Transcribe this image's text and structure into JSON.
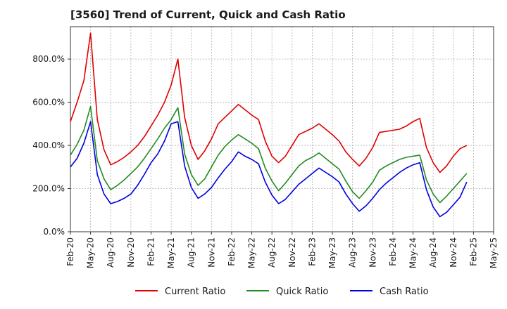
{
  "chart_data": {
    "type": "line",
    "title": "[3560]  Trend of Current, Quick and Cash Ratio",
    "xlabel": "",
    "ylabel": "",
    "ylim": [
      0,
      950
    ],
    "y_ticks": [
      0,
      200,
      400,
      600,
      800
    ],
    "y_tick_labels": [
      "0.0%",
      "200.0%",
      "400.0%",
      "600.0%",
      "800.0%"
    ],
    "x_tick_labels": [
      "Feb-20",
      "May-20",
      "Aug-20",
      "Nov-20",
      "Feb-21",
      "May-21",
      "Aug-21",
      "Nov-21",
      "Feb-22",
      "May-22",
      "Aug-22",
      "Nov-22",
      "Feb-23",
      "May-23",
      "Aug-23",
      "Nov-23",
      "Feb-24",
      "May-24",
      "Aug-24",
      "Nov-24",
      "Feb-25",
      "May-25"
    ],
    "grid": true,
    "legend_position": "bottom",
    "x_months": [
      0,
      1,
      2,
      3,
      4,
      5,
      6,
      7,
      8,
      9,
      10,
      11,
      12,
      13,
      14,
      15,
      16,
      17,
      18,
      19,
      20,
      21,
      22,
      23,
      24,
      25,
      26,
      27,
      28,
      29,
      30,
      31,
      32,
      33,
      34,
      35,
      36,
      37,
      38,
      39,
      40,
      41,
      42,
      43,
      44,
      45,
      46,
      47,
      48,
      49,
      50,
      51,
      52,
      53,
      54,
      55,
      56,
      57,
      58,
      59
    ],
    "series": [
      {
        "name": "Current Ratio",
        "color": "#e00000",
        "values": [
          510,
          600,
          700,
          920,
          520,
          380,
          310,
          325,
          345,
          370,
          400,
          440,
          490,
          540,
          600,
          680,
          800,
          530,
          400,
          335,
          375,
          430,
          500,
          530,
          560,
          590,
          565,
          540,
          520,
          420,
          350,
          320,
          350,
          400,
          450,
          465,
          480,
          500,
          475,
          450,
          420,
          370,
          335,
          305,
          340,
          390,
          460,
          465,
          470,
          475,
          490,
          510,
          525,
          390,
          320,
          275,
          305,
          350,
          385,
          400
        ]
      },
      {
        "name": "Quick Ratio",
        "color": "#228b22",
        "values": [
          355,
          405,
          470,
          580,
          330,
          245,
          195,
          215,
          240,
          270,
          300,
          340,
          385,
          430,
          480,
          520,
          575,
          360,
          265,
          215,
          245,
          300,
          355,
          395,
          425,
          450,
          430,
          410,
          385,
          295,
          235,
          190,
          225,
          265,
          305,
          330,
          345,
          365,
          340,
          315,
          290,
          235,
          185,
          155,
          190,
          230,
          285,
          305,
          320,
          335,
          345,
          350,
          355,
          240,
          175,
          135,
          165,
          200,
          235,
          270
        ]
      },
      {
        "name": "Cash Ratio",
        "color": "#0000e0",
        "values": [
          300,
          340,
          410,
          510,
          265,
          175,
          130,
          140,
          155,
          175,
          215,
          265,
          320,
          360,
          420,
          500,
          510,
          305,
          205,
          155,
          175,
          205,
          250,
          290,
          325,
          370,
          350,
          335,
          315,
          230,
          170,
          130,
          150,
          185,
          220,
          245,
          270,
          295,
          275,
          255,
          230,
          175,
          130,
          95,
          120,
          155,
          195,
          225,
          250,
          275,
          295,
          310,
          320,
          195,
          115,
          70,
          90,
          125,
          160,
          230
        ]
      }
    ]
  }
}
